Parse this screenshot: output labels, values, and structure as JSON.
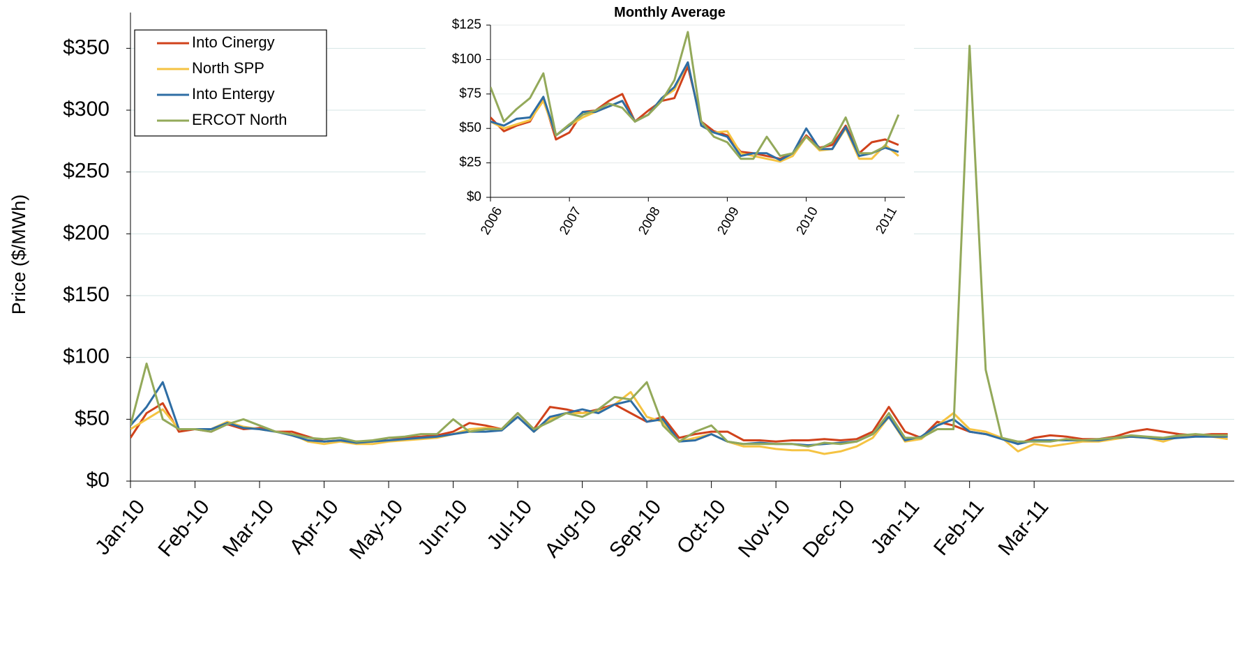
{
  "chart_data": [
    {
      "type": "line",
      "y_label": "Price ($/MWh)",
      "x": [
        0,
        0.25,
        0.5,
        0.75,
        1,
        1.25,
        1.5,
        1.75,
        2,
        2.25,
        2.5,
        2.75,
        3,
        3.25,
        3.5,
        3.75,
        4,
        4.25,
        4.5,
        4.75,
        5,
        5.25,
        5.5,
        5.75,
        6,
        6.25,
        6.5,
        6.75,
        7,
        7.25,
        7.5,
        7.75,
        8,
        8.25,
        8.5,
        8.75,
        9,
        9.25,
        9.5,
        9.75,
        10,
        10.25,
        10.5,
        10.75,
        11,
        11.25,
        11.5,
        11.75,
        12,
        12.25,
        12.5,
        12.75,
        13,
        13.25,
        13.5,
        13.75,
        14,
        14.25,
        14.5,
        14.75,
        15,
        15.25,
        15.5,
        15.75,
        16,
        16.25,
        16.5,
        16.75,
        17
      ],
      "xlim": [
        0,
        17.1
      ],
      "xticks": [
        {
          "value": 0,
          "label": "Jan-10"
        },
        {
          "value": 1,
          "label": "Feb-10"
        },
        {
          "value": 2,
          "label": "Mar-10"
        },
        {
          "value": 3,
          "label": "Apr-10"
        },
        {
          "value": 4,
          "label": "May-10"
        },
        {
          "value": 5,
          "label": "Jun-10"
        },
        {
          "value": 6,
          "label": "Jul-10"
        },
        {
          "value": 7,
          "label": "Aug-10"
        },
        {
          "value": 8,
          "label": "Sep-10"
        },
        {
          "value": 9,
          "label": "Oct-10"
        },
        {
          "value": 10,
          "label": "Nov-10"
        },
        {
          "value": 11,
          "label": "Dec-10"
        },
        {
          "value": 12,
          "label": "Jan-11"
        },
        {
          "value": 13,
          "label": "Feb-11"
        },
        {
          "value": 14,
          "label": "Mar-11"
        }
      ],
      "ylim": [
        0,
        375
      ],
      "yticks": [
        {
          "value": 0,
          "label": "$0"
        },
        {
          "value": 50,
          "label": "$50"
        },
        {
          "value": 100,
          "label": "$100"
        },
        {
          "value": 150,
          "label": "$150"
        },
        {
          "value": 200,
          "label": "$200"
        },
        {
          "value": 250,
          "label": "$250"
        },
        {
          "value": 300,
          "label": "$300"
        },
        {
          "value": 350,
          "label": "$350"
        }
      ],
      "grid": true,
      "legend": "upper left",
      "series": [
        {
          "name": "Into Cinergy",
          "color": "#d0421b",
          "values": [
            35,
            55,
            63,
            40,
            42,
            40,
            46,
            42,
            43,
            40,
            40,
            36,
            32,
            33,
            32,
            32,
            35,
            35,
            36,
            37,
            40,
            47,
            45,
            42,
            55,
            42,
            60,
            58,
            55,
            58,
            62,
            55,
            48,
            52,
            35,
            38,
            40,
            40,
            33,
            33,
            32,
            33,
            33,
            34,
            33,
            34,
            40,
            60,
            40,
            35,
            48,
            45,
            40,
            38,
            35,
            30,
            35,
            37,
            36,
            34,
            34,
            36,
            40,
            42,
            40,
            38,
            37,
            38,
            38
          ]
        },
        {
          "name": "North SPP",
          "color": "#f5c342",
          "values": [
            42,
            50,
            58,
            42,
            42,
            42,
            48,
            44,
            42,
            40,
            38,
            32,
            30,
            32,
            30,
            30,
            32,
            33,
            34,
            35,
            38,
            42,
            43,
            42,
            52,
            40,
            50,
            55,
            55,
            56,
            62,
            72,
            52,
            48,
            32,
            35,
            38,
            32,
            28,
            28,
            26,
            25,
            25,
            22,
            24,
            28,
            35,
            52,
            32,
            34,
            45,
            55,
            42,
            40,
            35,
            24,
            30,
            28,
            30,
            32,
            32,
            34,
            36,
            35,
            32,
            36,
            38,
            36,
            34
          ]
        },
        {
          "name": "Into Entergy",
          "color": "#2e6da4",
          "values": [
            45,
            60,
            80,
            42,
            42,
            42,
            47,
            43,
            42,
            40,
            37,
            33,
            32,
            33,
            31,
            32,
            33,
            34,
            35,
            36,
            38,
            40,
            40,
            41,
            52,
            40,
            52,
            55,
            58,
            55,
            62,
            65,
            48,
            50,
            32,
            33,
            38,
            32,
            30,
            31,
            30,
            30,
            29,
            30,
            31,
            32,
            38,
            52,
            33,
            36,
            45,
            50,
            40,
            38,
            34,
            30,
            33,
            33,
            33,
            33,
            33,
            35,
            36,
            35,
            34,
            35,
            36,
            36,
            36
          ]
        },
        {
          "name": "ERCOT North",
          "color": "#93a95a",
          "values": [
            45,
            95,
            50,
            42,
            42,
            40,
            46,
            50,
            45,
            40,
            38,
            35,
            34,
            35,
            32,
            33,
            35,
            36,
            38,
            38,
            50,
            40,
            42,
            42,
            55,
            42,
            48,
            55,
            52,
            58,
            68,
            66,
            80,
            45,
            32,
            40,
            45,
            32,
            30,
            30,
            30,
            30,
            28,
            31,
            30,
            32,
            38,
            55,
            35,
            35,
            42,
            42,
            352,
            90,
            35,
            32,
            32,
            32,
            34,
            33,
            34,
            35,
            37,
            36,
            35,
            37,
            38,
            37,
            37
          ]
        }
      ]
    },
    {
      "type": "line",
      "title": "Monthly Average",
      "x": [
        2006,
        2006.17,
        2006.33,
        2006.5,
        2006.67,
        2006.83,
        2007,
        2007.17,
        2007.33,
        2007.5,
        2007.67,
        2007.83,
        2008,
        2008.17,
        2008.33,
        2008.5,
        2008.67,
        2008.83,
        2009,
        2009.17,
        2009.33,
        2009.5,
        2009.67,
        2009.83,
        2010,
        2010.17,
        2010.33,
        2010.5,
        2010.67,
        2010.83,
        2011,
        2011.17
      ],
      "xlim": [
        2006,
        2011.25
      ],
      "xticks": [
        2006,
        2007,
        2008,
        2009,
        2010,
        2011
      ],
      "ylim": [
        0,
        125
      ],
      "yticks": [
        {
          "value": 0,
          "label": "$0"
        },
        {
          "value": 25,
          "label": "$25"
        },
        {
          "value": 50,
          "label": "$50"
        },
        {
          "value": 75,
          "label": "$75"
        },
        {
          "value": 100,
          "label": "$100"
        },
        {
          "value": 125,
          "label": "$125"
        }
      ],
      "grid": true,
      "series": [
        {
          "color": "#d0421b",
          "values": [
            58,
            48,
            52,
            55,
            72,
            42,
            47,
            62,
            63,
            70,
            75,
            55,
            63,
            70,
            72,
            95,
            55,
            48,
            45,
            33,
            32,
            30,
            28,
            32,
            45,
            36,
            38,
            52,
            32,
            40,
            42,
            38
          ]
        },
        {
          "color": "#f5c342",
          "values": [
            55,
            50,
            53,
            56,
            70,
            45,
            52,
            58,
            62,
            66,
            70,
            55,
            60,
            72,
            78,
            98,
            52,
            47,
            48,
            32,
            30,
            28,
            26,
            30,
            44,
            34,
            35,
            50,
            28,
            28,
            38,
            30
          ]
        },
        {
          "color": "#2e6da4",
          "values": [
            55,
            52,
            57,
            58,
            73,
            45,
            52,
            62,
            62,
            66,
            70,
            55,
            60,
            72,
            80,
            98,
            52,
            47,
            44,
            30,
            32,
            32,
            27,
            32,
            50,
            35,
            35,
            51,
            30,
            32,
            36,
            33
          ]
        },
        {
          "color": "#93a95a",
          "values": [
            80,
            55,
            64,
            72,
            90,
            45,
            53,
            60,
            63,
            68,
            65,
            55,
            60,
            70,
            85,
            120,
            55,
            44,
            40,
            28,
            28,
            44,
            30,
            32,
            44,
            35,
            40,
            58,
            32,
            32,
            37,
            60
          ]
        }
      ]
    }
  ]
}
